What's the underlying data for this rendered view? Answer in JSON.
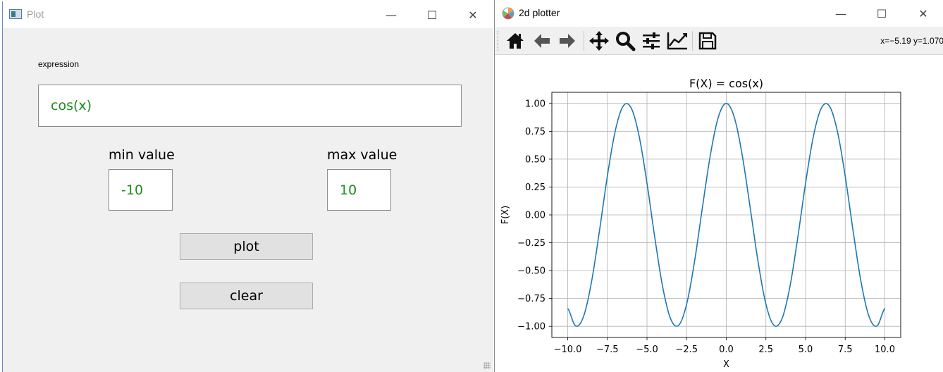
{
  "left_window": {
    "title": "Plot",
    "controls": {
      "minimize": "—",
      "maximize": "☐",
      "close": "✕"
    },
    "expression_label": "expression",
    "expression_value": "cos(x)",
    "min_label": "min value",
    "min_value": "-10",
    "max_label": "max value",
    "max_value": "10",
    "plot_button": "plot",
    "clear_button": "clear",
    "value_color": "#1f8a1f"
  },
  "right_window": {
    "title": "2d plotter",
    "controls": {
      "minimize": "—",
      "maximize": "☐",
      "close": "✕"
    },
    "toolbar": [
      {
        "name": "home-icon"
      },
      {
        "name": "back-arrow-icon"
      },
      {
        "name": "forward-arrow-icon"
      },
      {
        "name": "pan-icon"
      },
      {
        "name": "zoom-icon"
      },
      {
        "name": "configure-subplots-icon"
      },
      {
        "name": "edit-axis-icon"
      },
      {
        "name": "save-icon"
      }
    ],
    "coords_readout": "x=−5.19 y=1.070"
  },
  "chart_data": {
    "type": "line",
    "title": "F(X) = cos(x)",
    "xlabel": "X",
    "ylabel": "F(X)",
    "xlim": [
      -11,
      11
    ],
    "ylim": [
      -1.1,
      1.1
    ],
    "xticks": [
      -10,
      -7.5,
      -5,
      -2.5,
      0,
      2.5,
      5,
      7.5,
      10
    ],
    "xtick_labels": [
      "−10.0",
      "−7.5",
      "−5.0",
      "−2.5",
      "0.0",
      "2.5",
      "5.0",
      "7.5",
      "10.0"
    ],
    "yticks": [
      1,
      0.75,
      0.5,
      0.25,
      0,
      -0.25,
      -0.5,
      -0.75,
      -1
    ],
    "ytick_labels": [
      "1.00",
      "0.75",
      "0.50",
      "0.25",
      "0.00",
      "−0.25",
      "−0.50",
      "−0.75",
      "−1.00"
    ],
    "grid": true,
    "series": [
      {
        "color": "#1f77b4",
        "x": [
          -10,
          -9.5,
          -9,
          -8.5,
          -8,
          -7.5,
          -7,
          -6.5,
          -6,
          -5.5,
          -5,
          -4.5,
          -4,
          -3.5,
          -3,
          -2.5,
          -2,
          -1.5,
          -1,
          -0.5,
          0,
          0.5,
          1,
          1.5,
          2,
          2.5,
          3,
          3.5,
          4,
          4.5,
          5,
          5.5,
          6,
          6.5,
          7,
          7.5,
          8,
          8.5,
          9,
          9.5,
          10
        ],
        "y": [
          -0.839,
          -0.997,
          -0.911,
          -0.602,
          -0.146,
          0.347,
          0.754,
          0.977,
          0.96,
          0.709,
          0.284,
          -0.211,
          -0.654,
          -0.936,
          -0.99,
          -0.801,
          -0.416,
          0.071,
          0.54,
          0.878,
          1.0,
          0.878,
          0.54,
          0.071,
          -0.416,
          -0.801,
          -0.99,
          -0.936,
          -0.654,
          -0.211,
          0.284,
          0.709,
          0.96,
          0.977,
          0.754,
          0.347,
          -0.146,
          -0.602,
          -0.911,
          -0.997,
          -0.839
        ]
      }
    ]
  }
}
